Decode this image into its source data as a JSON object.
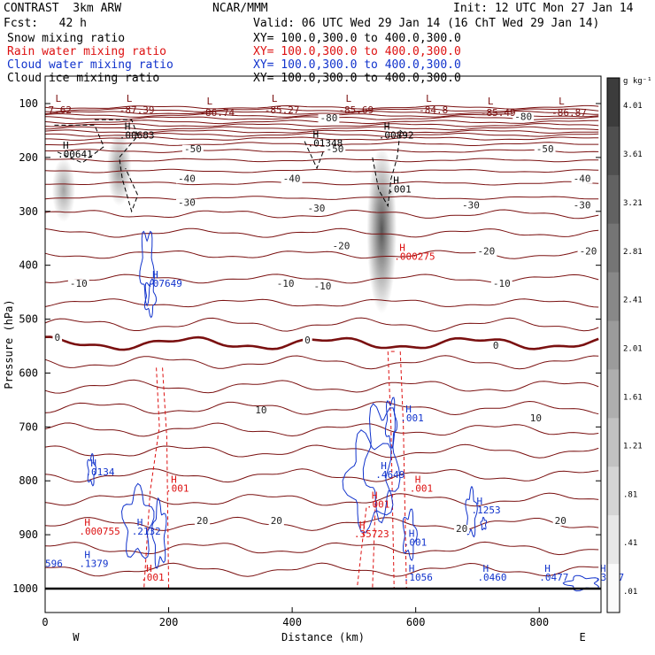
{
  "header": {
    "project": "CONTRAST  3km ARW",
    "center": "NCAR/MMM",
    "init": "Init: 12 UTC Mon 27 Jan 14",
    "fcst": "Fcst:   42 h",
    "valid": "Valid: 06 UTC Wed 29 Jan 14 (16 ChT Wed 29 Jan 14)"
  },
  "fields": [
    {
      "label": "Snow mixing ratio",
      "xy": "XY= 100.0,300.0 to 400.0,300.0",
      "color": "#000000"
    },
    {
      "label": "Rain water mixing ratio",
      "xy": "XY= 100.0,300.0 to 400.0,300.0",
      "color": "#dd1111"
    },
    {
      "label": "Cloud water mixing ratio",
      "xy": "XY= 100.0,300.0 to 400.0,300.0",
      "color": "#1133cc"
    },
    {
      "label": "Cloud ice mixing ratio",
      "xy": "XY= 100.0,300.0 to 400.0,300.0",
      "color": "#000000"
    }
  ],
  "chart_data": {
    "type": "contour-cross-section",
    "xlabel": "Distance (km)",
    "ylabel": "Pressure (hPa)",
    "xlim": [
      0,
      900
    ],
    "ylim": [
      1050,
      50
    ],
    "xticks": [
      0,
      200,
      400,
      600,
      800
    ],
    "yticks": [
      100,
      200,
      300,
      400,
      500,
      600,
      700,
      800,
      900,
      1000
    ],
    "endpoints": {
      "left": "W",
      "right": "E"
    },
    "colorbar": {
      "unit": "g kg⁻¹",
      "ticks": [
        "4.01",
        "3.61",
        "3.21",
        "2.81",
        "2.41",
        "2.01",
        "1.61",
        "1.21",
        ".81",
        ".41",
        ".01"
      ]
    },
    "temperature_contours": {
      "color": "#7a1010",
      "levels_C": [
        -80,
        -50,
        -40,
        -30,
        -20,
        -10,
        0,
        10,
        20
      ],
      "labels": [
        {
          "text": "-80",
          "x": 445,
          "p": 133
        },
        {
          "text": "-80",
          "x": 760,
          "p": 130
        },
        {
          "text": "-50",
          "x": 225,
          "p": 190
        },
        {
          "text": "-50",
          "x": 455,
          "p": 190
        },
        {
          "text": "-50",
          "x": 795,
          "p": 190
        },
        {
          "text": "-40",
          "x": 215,
          "p": 245
        },
        {
          "text": "-40",
          "x": 385,
          "p": 245
        },
        {
          "text": "-40",
          "x": 855,
          "p": 245
        },
        {
          "text": "-30",
          "x": 215,
          "p": 290
        },
        {
          "text": "-30",
          "x": 425,
          "p": 300
        },
        {
          "text": "-30",
          "x": 675,
          "p": 295
        },
        {
          "text": "-30",
          "x": 855,
          "p": 295
        },
        {
          "text": "-20",
          "x": 465,
          "p": 370
        },
        {
          "text": "-20",
          "x": 700,
          "p": 380
        },
        {
          "text": "-20",
          "x": 865,
          "p": 380
        },
        {
          "text": "-10",
          "x": 40,
          "p": 440
        },
        {
          "text": "-10",
          "x": 375,
          "p": 440
        },
        {
          "text": "-10",
          "x": 435,
          "p": 445
        },
        {
          "text": "-10",
          "x": 725,
          "p": 440
        },
        {
          "text": "0",
          "x": 15,
          "p": 540
        },
        {
          "text": "0",
          "x": 420,
          "p": 545
        },
        {
          "text": "0",
          "x": 725,
          "p": 555
        },
        {
          "text": "10",
          "x": 340,
          "p": 675
        },
        {
          "text": "10",
          "x": 785,
          "p": 690
        },
        {
          "text": "20",
          "x": 245,
          "p": 880
        },
        {
          "text": "20",
          "x": 365,
          "p": 880
        },
        {
          "text": "20",
          "x": 665,
          "p": 895
        },
        {
          "text": "20",
          "x": 825,
          "p": 880
        }
      ],
      "low_labels": [
        {
          "text": "7.62",
          "x": 5,
          "p": 110
        },
        {
          "text": "-87.39",
          "x": 120,
          "p": 110
        },
        {
          "text": "-86.74",
          "x": 250,
          "p": 115
        },
        {
          "text": "-85.27",
          "x": 355,
          "p": 110
        },
        {
          "text": "-85.69",
          "x": 475,
          "p": 110
        },
        {
          "text": "-84.8",
          "x": 605,
          "p": 110
        },
        {
          "text": "-85.49",
          "x": 705,
          "p": 115
        },
        {
          "text": "-86.87",
          "x": 820,
          "p": 115
        }
      ]
    },
    "snow_ice_maxima": [
      {
        "text": ".00683",
        "x": 120,
        "p": 165
      },
      {
        "text": ".00641",
        "x": 20,
        "p": 200
      },
      {
        "text": ".01348",
        "x": 425,
        "p": 180
      },
      {
        "text": ".00892",
        "x": 540,
        "p": 165
      },
      {
        "text": ".001",
        "x": 555,
        "p": 265
      }
    ],
    "rain_maxima": [
      {
        "text": ".000275",
        "x": 565,
        "p": 390
      },
      {
        "text": ".001",
        "x": 195,
        "p": 820
      },
      {
        "text": ".000755",
        "x": 55,
        "p": 900
      },
      {
        "text": ".001",
        "x": 155,
        "p": 985
      },
      {
        "text": ".001",
        "x": 590,
        "p": 820
      },
      {
        "text": ".001",
        "x": 520,
        "p": 850
      },
      {
        "text": ".35723",
        "x": 500,
        "p": 905
      }
    ],
    "cloud_water_maxima": [
      {
        "text": ".07649",
        "x": 165,
        "p": 440
      },
      {
        "text": ".0134",
        "x": 65,
        "p": 790
      },
      {
        "text": ".2132",
        "x": 140,
        "p": 900
      },
      {
        "text": ".1379",
        "x": 55,
        "p": 960
      },
      {
        "text": ".4649",
        "x": 535,
        "p": 795
      },
      {
        "text": ".001",
        "x": 575,
        "p": 690
      },
      {
        "text": ".001",
        "x": 580,
        "p": 920
      },
      {
        "text": ".1253",
        "x": 690,
        "p": 860
      },
      {
        "text": ".1056",
        "x": 580,
        "p": 985
      },
      {
        "text": ".0460",
        "x": 700,
        "p": 985
      },
      {
        "text": ".0477",
        "x": 800,
        "p": 985
      },
      {
        "text": ".3027",
        "x": 890,
        "p": 985
      },
      {
        "text": "596",
        "x": 0,
        "p": 960
      }
    ],
    "shading_bands": [
      {
        "x": 120,
        "p_top": 150,
        "p_bottom": 290,
        "max": 0.6
      },
      {
        "x": 30,
        "p_top": 200,
        "p_bottom": 320,
        "max": 0.35
      },
      {
        "x": 545,
        "p_top": 180,
        "p_bottom": 490,
        "max": 1.6
      }
    ]
  }
}
